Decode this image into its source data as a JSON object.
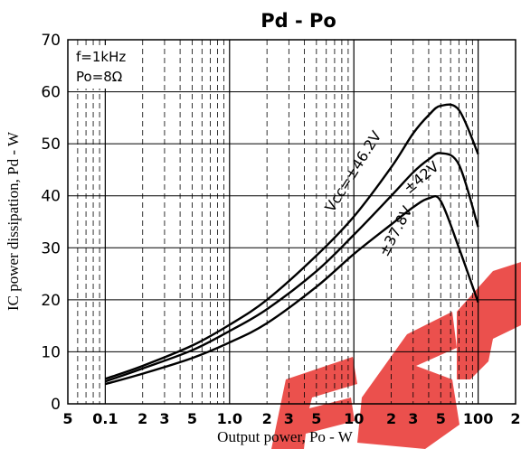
{
  "colors": {
    "ink": "#000000",
    "grid": "#000000",
    "watermark": "#e8322e"
  },
  "chart_data": {
    "type": "line",
    "title": "Pd - Po",
    "xlabel": "Output power, Po - W",
    "ylabel": "IC power dissipation, Pd - W",
    "xscale": "log",
    "xlim": [
      0.05,
      200
    ],
    "ylim": [
      0,
      70
    ],
    "grid": true,
    "y_ticks": [
      "0",
      "10",
      "20",
      "30",
      "40",
      "50",
      "60",
      "70"
    ],
    "x_tick_labels": [
      {
        "value": 0.05,
        "label": "5"
      },
      {
        "value": 0.1,
        "label": "0.1"
      },
      {
        "value": 0.2,
        "label": "2"
      },
      {
        "value": 0.3,
        "label": "3"
      },
      {
        "value": 0.5,
        "label": "5"
      },
      {
        "value": 1.0,
        "label": "1.0"
      },
      {
        "value": 2,
        "label": "2"
      },
      {
        "value": 3,
        "label": "3"
      },
      {
        "value": 5,
        "label": "5"
      },
      {
        "value": 10,
        "label": "10"
      },
      {
        "value": 20,
        "label": "2"
      },
      {
        "value": 30,
        "label": "3"
      },
      {
        "value": 50,
        "label": "5"
      },
      {
        "value": 100,
        "label": "100"
      },
      {
        "value": 200,
        "label": "2"
      }
    ],
    "conditions": [
      "f=1kHz",
      "Po=8Ω"
    ],
    "series": [
      {
        "name": "Vcc=±46.2V",
        "x": [
          0.1,
          0.2,
          0.5,
          1,
          2,
          5,
          10,
          20,
          30,
          40,
          50,
          70,
          100
        ],
        "y": [
          4.8,
          7.3,
          11.2,
          15.2,
          20.0,
          28.5,
          36.0,
          45.5,
          52.0,
          55.5,
          57.3,
          56.5,
          48.0
        ]
      },
      {
        "name": "±42V",
        "x": [
          0.1,
          0.2,
          0.5,
          1,
          2,
          5,
          10,
          20,
          30,
          40,
          50,
          70,
          100
        ],
        "y": [
          4.3,
          6.8,
          10.3,
          14.0,
          18.2,
          25.5,
          32.5,
          40.0,
          44.5,
          47.0,
          48.2,
          46.0,
          34.0
        ]
      },
      {
        "name": "±37.8V",
        "x": [
          0.1,
          0.2,
          0.5,
          1,
          2,
          5,
          10,
          20,
          30,
          40,
          50,
          70,
          100
        ],
        "y": [
          3.8,
          5.8,
          8.8,
          11.8,
          15.5,
          22.5,
          28.8,
          34.5,
          37.8,
          39.5,
          39.0,
          30.0,
          19.5
        ]
      }
    ],
    "watermark": "ESP"
  }
}
